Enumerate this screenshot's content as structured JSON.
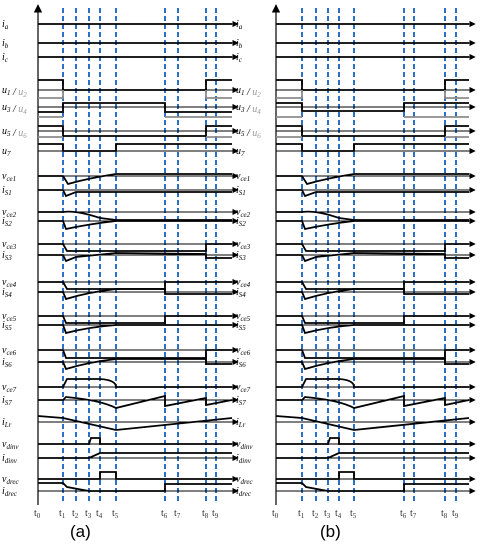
{
  "captions": {
    "a": "(a)",
    "b": "(b)"
  },
  "colors": {
    "trace": "#000000",
    "gate_alt": "#8c8c8c",
    "marker": "#2b6fc9",
    "axis": "#000000"
  },
  "rows": [
    {
      "id": "ia",
      "parts": [
        {
          "t": "i",
          "s": "a"
        }
      ]
    },
    {
      "id": "ib",
      "parts": [
        {
          "t": "i",
          "s": "b"
        }
      ]
    },
    {
      "id": "ic",
      "parts": [
        {
          "t": "i",
          "s": "c"
        }
      ]
    },
    {
      "id": "u1",
      "parts": [
        {
          "t": "u",
          "s": "1"
        },
        {
          "t": " / "
        },
        {
          "t": "u",
          "s": "2",
          "gray": true
        }
      ]
    },
    {
      "id": "u3",
      "parts": [
        {
          "t": "u",
          "s": "3"
        },
        {
          "t": " / "
        },
        {
          "t": "u",
          "s": "4",
          "gray": true
        }
      ]
    },
    {
      "id": "u5",
      "parts": [
        {
          "t": "u",
          "s": "5"
        },
        {
          "t": " / "
        },
        {
          "t": "u",
          "s": "6",
          "gray": true
        }
      ]
    },
    {
      "id": "u7",
      "parts": [
        {
          "t": "u",
          "s": "7"
        }
      ]
    },
    {
      "id": "vce1",
      "parts": [
        {
          "t": "v",
          "s": "ce1"
        }
      ]
    },
    {
      "id": "iS1",
      "parts": [
        {
          "t": "i",
          "s": "S1"
        }
      ]
    },
    {
      "id": "vce2",
      "parts": [
        {
          "t": "v",
          "s": "ce2"
        }
      ]
    },
    {
      "id": "iS2",
      "parts": [
        {
          "t": "i",
          "s": "S2"
        }
      ]
    },
    {
      "id": "vce3",
      "parts": [
        {
          "t": "v",
          "s": "ce3"
        }
      ]
    },
    {
      "id": "iS3",
      "parts": [
        {
          "t": "i",
          "s": "S3"
        }
      ]
    },
    {
      "id": "vce4",
      "parts": [
        {
          "t": "v",
          "s": "ce4"
        }
      ]
    },
    {
      "id": "iS4",
      "parts": [
        {
          "t": "i",
          "s": "S4"
        }
      ]
    },
    {
      "id": "vce5",
      "parts": [
        {
          "t": "v",
          "s": "ce5"
        }
      ]
    },
    {
      "id": "iS5",
      "parts": [
        {
          "t": "i",
          "s": "S5"
        }
      ]
    },
    {
      "id": "vce6",
      "parts": [
        {
          "t": "v",
          "s": "ce6"
        }
      ]
    },
    {
      "id": "iS6",
      "parts": [
        {
          "t": "i",
          "s": "S6"
        }
      ]
    },
    {
      "id": "vce7",
      "parts": [
        {
          "t": "v",
          "s": "ce7"
        }
      ]
    },
    {
      "id": "iS7",
      "parts": [
        {
          "t": "i",
          "s": "S7"
        }
      ]
    },
    {
      "id": "iLr",
      "parts": [
        {
          "t": "i",
          "s": "Lr"
        }
      ]
    },
    {
      "id": "vdinv",
      "parts": [
        {
          "t": "v",
          "s": "dinv"
        }
      ]
    },
    {
      "id": "idinv",
      "parts": [
        {
          "t": "i",
          "s": "dinv"
        }
      ]
    },
    {
      "id": "vdrec",
      "parts": [
        {
          "t": "v",
          "s": "drec"
        }
      ]
    },
    {
      "id": "idrec",
      "parts": [
        {
          "t": "i",
          "s": "drec"
        }
      ]
    }
  ],
  "time_markers": [
    {
      "id": "t0",
      "label": "t",
      "sub": "0"
    },
    {
      "id": "t1",
      "label": "t",
      "sub": "1"
    },
    {
      "id": "t2",
      "label": "t",
      "sub": "2"
    },
    {
      "id": "t3",
      "label": "t",
      "sub": "3"
    },
    {
      "id": "t4",
      "label": "t",
      "sub": "4"
    },
    {
      "id": "t5",
      "label": "t",
      "sub": "5"
    },
    {
      "id": "t6",
      "label": "t",
      "sub": "6"
    },
    {
      "id": "t7",
      "label": "t",
      "sub": "7"
    },
    {
      "id": "t8",
      "label": "t",
      "sub": "8"
    },
    {
      "id": "t9",
      "label": "t",
      "sub": "9"
    }
  ]
}
